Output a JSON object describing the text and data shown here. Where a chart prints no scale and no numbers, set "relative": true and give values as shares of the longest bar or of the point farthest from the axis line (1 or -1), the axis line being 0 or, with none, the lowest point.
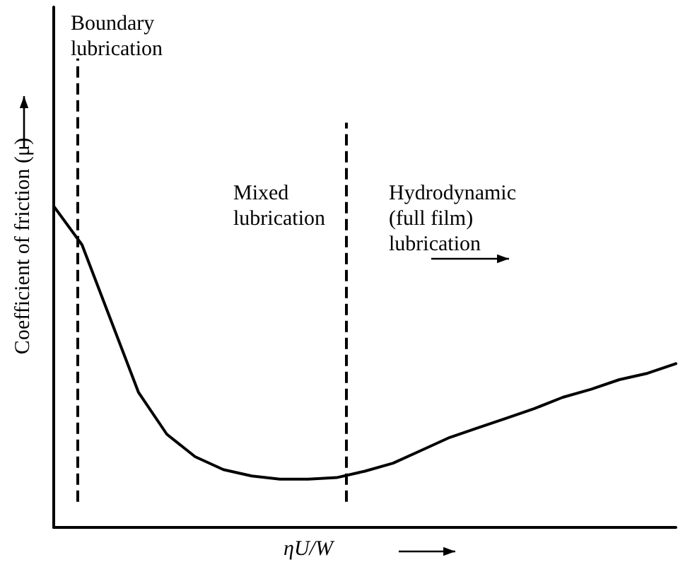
{
  "chart_data": {
    "type": "line",
    "relative": true,
    "xlabel": "ηU/W",
    "ylabel": "Coefficient of friction (μ)",
    "categories": [
      null,
      null,
      null,
      null,
      null,
      null,
      null,
      null,
      null,
      null,
      null,
      null,
      null,
      null,
      null,
      null,
      null,
      null,
      null,
      null,
      null,
      null,
      null
    ],
    "series": [
      {
        "color": "#000000",
        "values": [
          1,
          0.88,
          0.65,
          0.42,
          0.29,
          0.22,
          0.18,
          0.16,
          0.15,
          0.15,
          0.155,
          0.175,
          0.2,
          0.24,
          0.28,
          0.31,
          0.34,
          0.37,
          0.405,
          0.43,
          0.46,
          0.48,
          0.51
        ]
      }
    ],
    "annotations": [
      "Boundary\nlubrication",
      "Mixed\nlubrication",
      "Hydrodynamic\n(full film)\nlubrication"
    ],
    "tick_labels": false,
    "marker": "none",
    "line_style": "solid"
  }
}
